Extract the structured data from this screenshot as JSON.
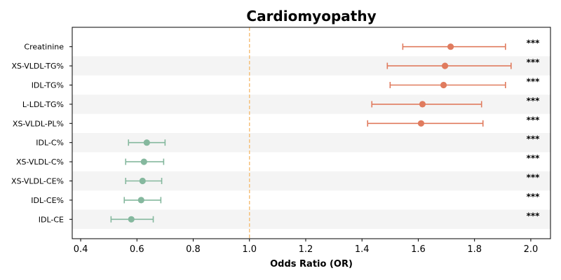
{
  "chart_data": {
    "type": "forest",
    "title": "Cardiomyopathy",
    "xlabel": "Odds Ratio (OR)",
    "xlim": [
      0.37,
      2.07
    ],
    "xticks": [
      "0.4",
      "0.6",
      "0.8",
      "1.0",
      "1.2",
      "1.4",
      "1.6",
      "1.8",
      "2.0"
    ],
    "reference_line": 1.0,
    "reference_color": "#f5c17c",
    "stripe_color": "#f4f4f4",
    "colors": {
      "risk": "#e07b5e",
      "protective": "#85b89e"
    },
    "rows": [
      {
        "label": "Creatinine",
        "or": 1.715,
        "lo": 1.545,
        "hi": 1.91,
        "sig": "***",
        "group": "risk"
      },
      {
        "label": "XS-VLDL-TG%",
        "or": 1.695,
        "lo": 1.49,
        "hi": 1.93,
        "sig": "***",
        "group": "risk"
      },
      {
        "label": "IDL-TG%",
        "or": 1.69,
        "lo": 1.5,
        "hi": 1.91,
        "sig": "***",
        "group": "risk"
      },
      {
        "label": "L-LDL-TG%",
        "or": 1.615,
        "lo": 1.435,
        "hi": 1.825,
        "sig": "***",
        "group": "risk"
      },
      {
        "label": "XS-VLDL-PL%",
        "or": 1.61,
        "lo": 1.42,
        "hi": 1.83,
        "sig": "***",
        "group": "risk"
      },
      {
        "label": "IDL-C%",
        "or": 0.635,
        "lo": 0.57,
        "hi": 0.7,
        "sig": "***",
        "group": "protective"
      },
      {
        "label": "XS-VLDL-C%",
        "or": 0.625,
        "lo": 0.56,
        "hi": 0.695,
        "sig": "***",
        "group": "protective"
      },
      {
        "label": "XS-VLDL-CE%",
        "or": 0.62,
        "lo": 0.56,
        "hi": 0.688,
        "sig": "***",
        "group": "protective"
      },
      {
        "label": "IDL-CE%",
        "or": 0.615,
        "lo": 0.555,
        "hi": 0.685,
        "sig": "***",
        "group": "protective"
      },
      {
        "label": "IDL-CE",
        "or": 0.58,
        "lo": 0.508,
        "hi": 0.658,
        "sig": "***",
        "group": "protective"
      }
    ]
  }
}
